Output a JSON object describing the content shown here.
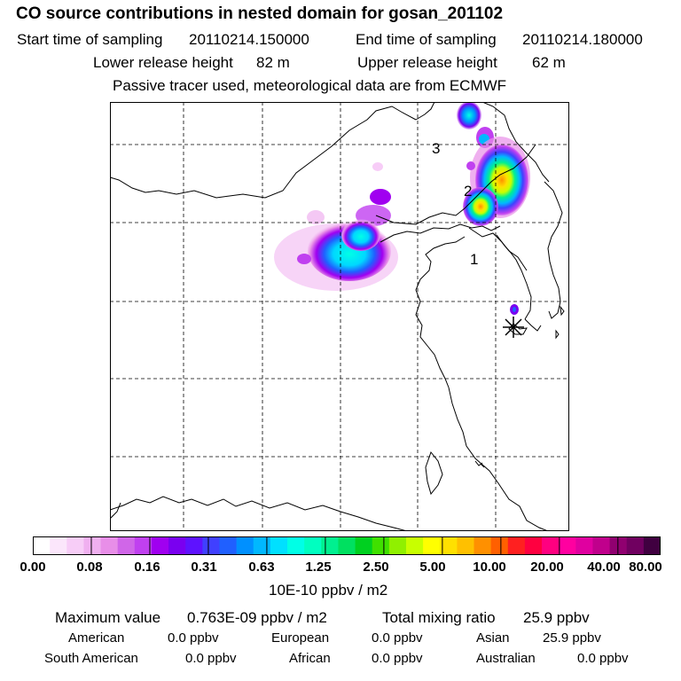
{
  "header": {
    "title": "CO  source contributions in nested domain for gosan_201102",
    "start_label": "Start time of sampling",
    "start_value": "20110214.150000",
    "end_label": "End time of sampling",
    "end_value": "20110214.180000",
    "lower_label": "Lower release height",
    "lower_value": "82 m",
    "upper_label": "Upper release height",
    "upper_value": "62 m",
    "note": "Passive tracer used, meteorological data are from ECMWF"
  },
  "map": {
    "labels": [
      "1",
      "2",
      "3"
    ],
    "receptor_icon": "asterisk-icon"
  },
  "colorbar": {
    "colors": [
      "#ffffff",
      "#fbe6fb",
      "#f7cdf7",
      "#f0b0f0",
      "#e88ee8",
      "#d066e8",
      "#c040f0",
      "#a000f0",
      "#7a00f0",
      "#5e12ff",
      "#4040ff",
      "#2060ff",
      "#0090ff",
      "#00b8ff",
      "#00e0ff",
      "#00ffe6",
      "#00ffc0",
      "#00f090",
      "#00e060",
      "#00d020",
      "#40e000",
      "#90f000",
      "#c8ff00",
      "#ffff00",
      "#ffe000",
      "#ffc000",
      "#ff9000",
      "#ff6000",
      "#ff2020",
      "#ff0040",
      "#ff0080",
      "#ff00a0",
      "#e000a0",
      "#c0008c",
      "#900070",
      "#700060",
      "#400040"
    ],
    "ticks": [
      "0.00",
      "0.08",
      "0.16",
      "0.31",
      "0.63",
      "1.25",
      "2.50",
      "5.00",
      "10.00",
      "20.00",
      "40.00",
      "80.00"
    ],
    "unit": "10E-10 ppbv / m2"
  },
  "footer": {
    "max_label": "Maximum value",
    "max_value": "0.763E-09 ppbv / m2",
    "total_label": "Total mixing ratio",
    "total_value": "25.9 ppbv",
    "regions": [
      {
        "name": "American",
        "value": "0.0 ppbv"
      },
      {
        "name": "European",
        "value": "0.0 ppbv"
      },
      {
        "name": "Asian",
        "value": "25.9 ppbv"
      },
      {
        "name": "South American",
        "value": "0.0 ppbv"
      },
      {
        "name": "African",
        "value": "0.0 ppbv"
      },
      {
        "name": "Australian",
        "value": "0.0 ppbv"
      }
    ]
  }
}
